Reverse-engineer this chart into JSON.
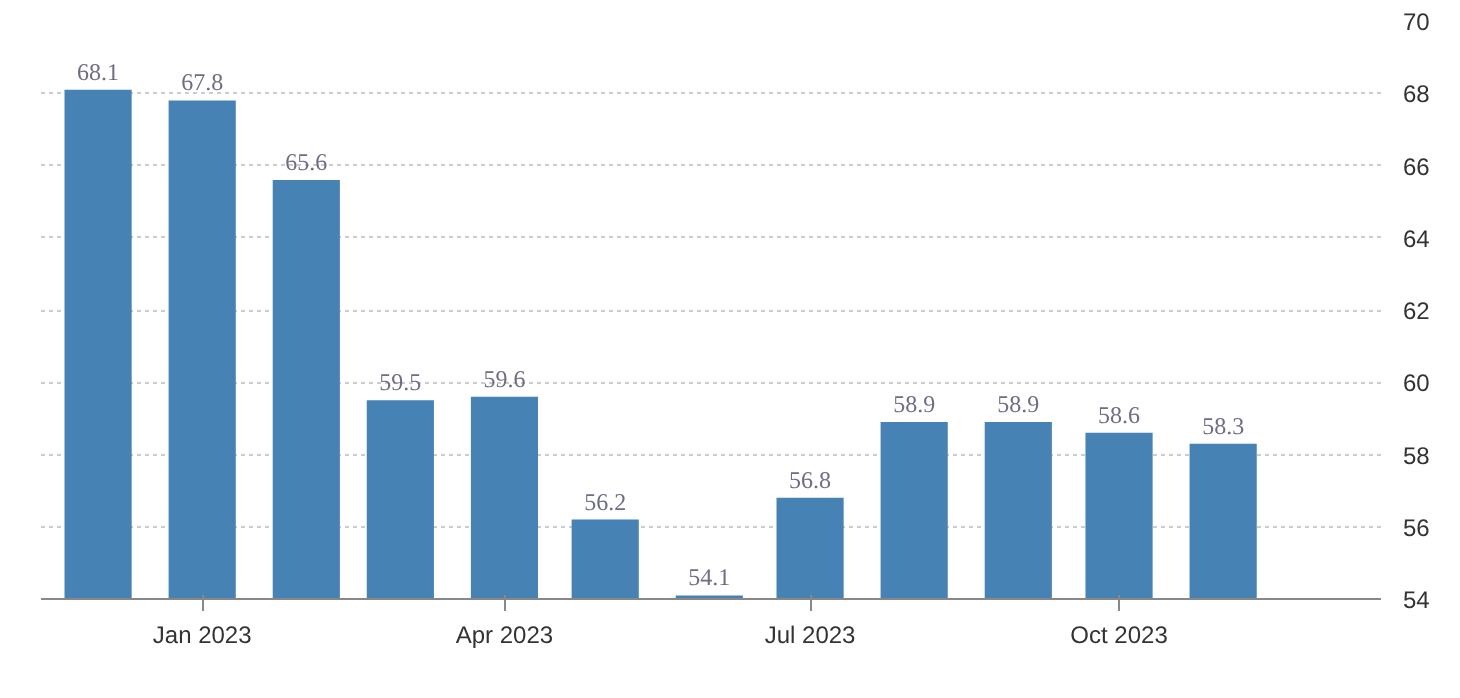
{
  "chart_data": {
    "type": "bar",
    "x": [
      "2022-12",
      "2023-01",
      "2023-02",
      "2023-03",
      "2023-04",
      "2023-05",
      "2023-06",
      "2023-07",
      "2023-08",
      "2023-09",
      "2023-10",
      "2023-11"
    ],
    "values": [
      68.1,
      67.8,
      65.6,
      59.5,
      59.6,
      56.2,
      54.1,
      56.8,
      58.9,
      58.9,
      58.6,
      58.3
    ],
    "color": "#4682b4",
    "data_labels": true,
    "ylim": [
      54,
      70
    ],
    "yticks": [
      54,
      56,
      58,
      60,
      62,
      64,
      66,
      68,
      70
    ],
    "xlim": [
      "2022-11-14",
      "2023-12-18"
    ],
    "xticks": [
      {
        "value": "2023-01",
        "label": "Jan 2023"
      },
      {
        "value": "2023-04",
        "label": "Apr 2023"
      },
      {
        "value": "2023-07",
        "label": "Jul 2023"
      },
      {
        "value": "2023-10",
        "label": "Oct 2023"
      }
    ],
    "grid": "y"
  }
}
